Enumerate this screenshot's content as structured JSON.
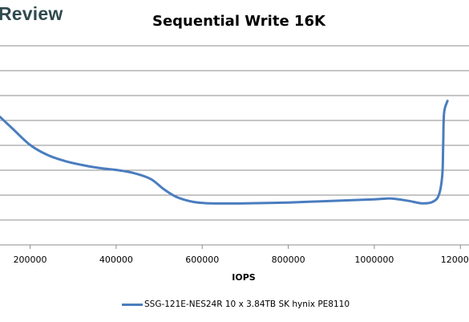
{
  "brand": {
    "logo_text": "Review"
  },
  "chart_data": {
    "type": "line",
    "title": "Sequential Write 16K",
    "xlabel": "IOPS",
    "ylabel": "",
    "x_ticks": [
      200000,
      400000,
      600000,
      800000,
      1000000,
      1200000
    ],
    "x_tick_labels": [
      "200000",
      "400000",
      "600000",
      "800000",
      "1000000",
      "1200000"
    ],
    "xlim": [
      130000,
      1220000
    ],
    "ylim": [
      0,
      10
    ],
    "grid": true,
    "legend_position": "bottom",
    "series": [
      {
        "name": "SSG-121E-NES24R 10 x 3.84TB SK hynix PE8110",
        "color": "#4a7dbf",
        "points": [
          [
            130000,
            6.4
          ],
          [
            160000,
            5.8
          ],
          [
            200000,
            5.0
          ],
          [
            240000,
            4.5
          ],
          [
            280000,
            4.2
          ],
          [
            320000,
            4.0
          ],
          [
            360000,
            3.85
          ],
          [
            400000,
            3.75
          ],
          [
            440000,
            3.6
          ],
          [
            480000,
            3.3
          ],
          [
            510000,
            2.8
          ],
          [
            540000,
            2.4
          ],
          [
            580000,
            2.15
          ],
          [
            620000,
            2.08
          ],
          [
            700000,
            2.08
          ],
          [
            800000,
            2.12
          ],
          [
            900000,
            2.2
          ],
          [
            1000000,
            2.28
          ],
          [
            1040000,
            2.32
          ],
          [
            1080000,
            2.2
          ],
          [
            1110000,
            2.08
          ],
          [
            1135000,
            2.15
          ],
          [
            1150000,
            2.5
          ],
          [
            1158000,
            3.5
          ],
          [
            1160000,
            5.0
          ],
          [
            1162000,
            6.6
          ],
          [
            1170000,
            7.2
          ]
        ]
      }
    ]
  }
}
